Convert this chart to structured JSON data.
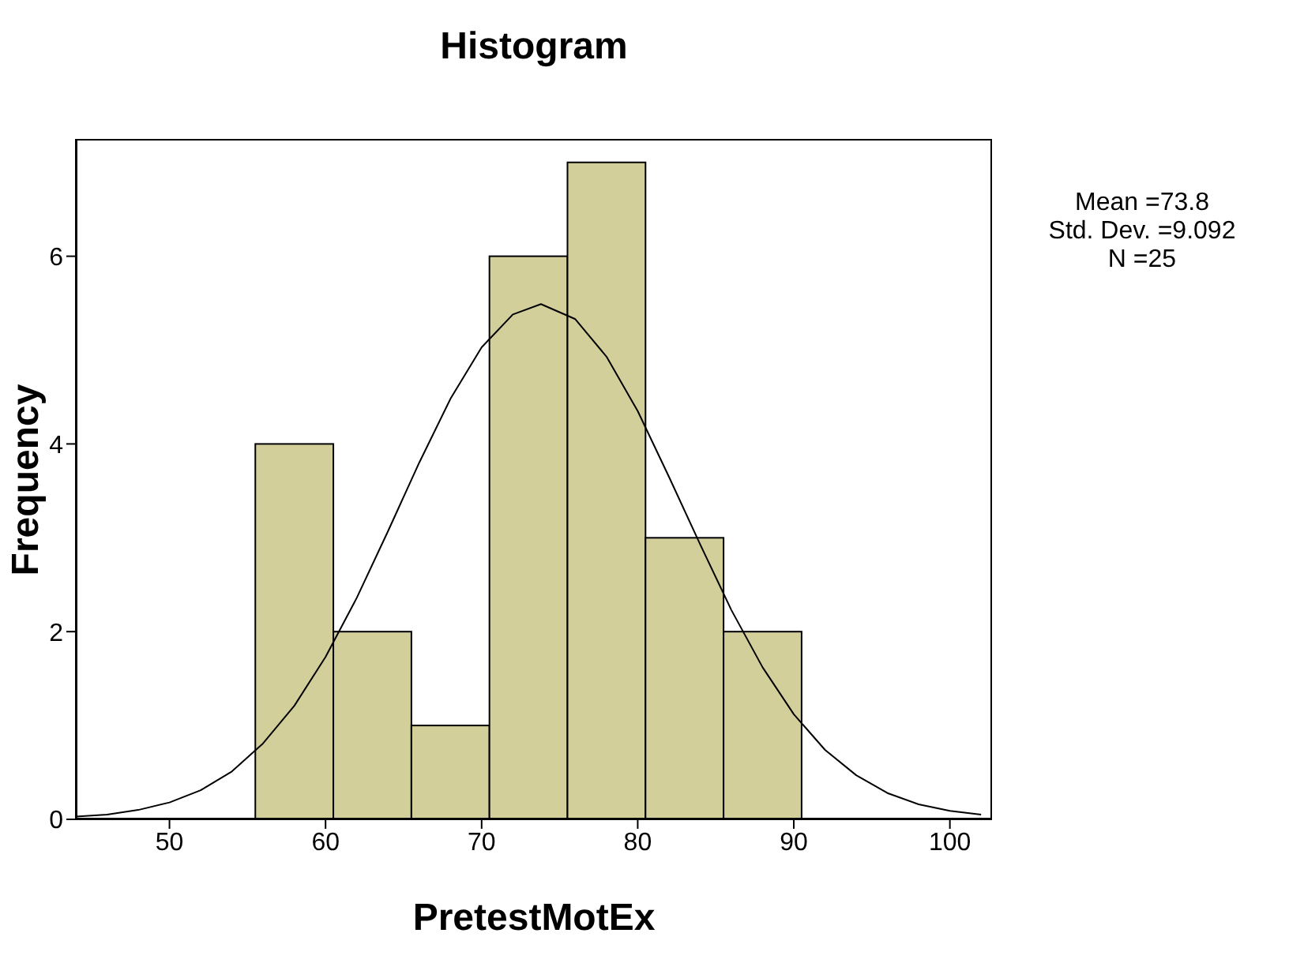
{
  "chart_data": {
    "type": "histogram",
    "title": "Histogram",
    "xlabel": "PretestMotEx",
    "ylabel": "Frequency",
    "bins": [
      55.5,
      60.5,
      65.5,
      70.5,
      75.5,
      80.5,
      85.5,
      90.5
    ],
    "values": [
      4,
      2,
      1,
      6,
      7,
      3,
      2
    ],
    "color": "#d3cf9b",
    "xlim": [
      44,
      102.7
    ],
    "xticks": [
      50,
      60,
      70,
      80,
      90,
      100
    ],
    "ylim": [
      0,
      7.25
    ],
    "yticks": [
      0,
      2,
      4,
      6
    ],
    "grid": false,
    "legend": false,
    "series": [
      {
        "type": "line",
        "color": "#000000",
        "x": [
          44,
          46,
          48,
          50,
          52,
          54,
          56,
          58,
          60,
          62,
          64,
          66,
          68,
          70,
          72,
          73.8,
          76,
          78,
          80,
          82,
          84,
          86,
          88,
          90,
          92,
          94,
          96,
          98,
          100,
          102
        ],
        "values": [
          0.03,
          0.05,
          0.1,
          0.18,
          0.31,
          0.51,
          0.81,
          1.21,
          1.73,
          2.36,
          3.07,
          3.8,
          4.48,
          5.03,
          5.38,
          5.49,
          5.33,
          4.93,
          4.35,
          3.65,
          2.93,
          2.23,
          1.62,
          1.12,
          0.74,
          0.47,
          0.28,
          0.16,
          0.09,
          0.05
        ]
      }
    ],
    "annotations": [
      "Mean =73.8",
      "Std. Dev. =9.092",
      "N =25"
    ]
  }
}
